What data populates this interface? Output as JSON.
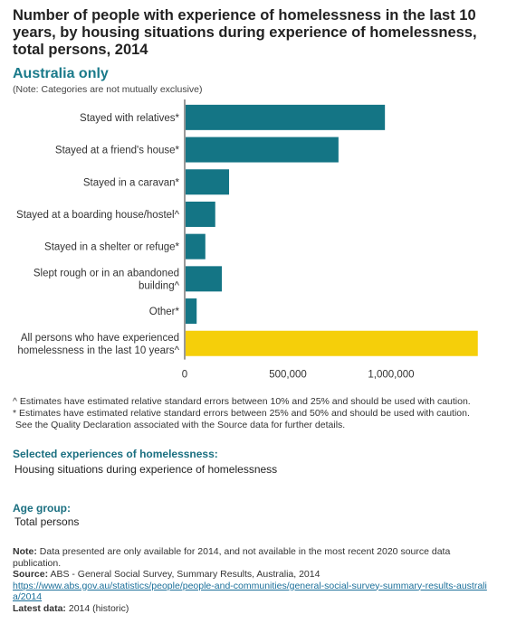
{
  "title": "Number of people with experience of homelessness in the last 10 years, by housing situations during experience of homelessness, total persons, 2014",
  "subtitle": "Australia only",
  "top_note": "(Note: Categories are not mutually exclusive)",
  "chart_data": {
    "type": "bar",
    "orientation": "horizontal",
    "categories": [
      "Stayed with relatives*",
      "Stayed at a friend's house*",
      "Stayed in a caravan*",
      "Stayed at a boarding house/hostel^",
      "Stayed in a shelter or refuge*",
      "Slept rough or in an abandoned building^",
      "Other*",
      "All persons who have experienced homelessness in the last 10 years^"
    ],
    "category_lines": [
      [
        "Stayed with relatives*"
      ],
      [
        "Stayed at a friend's house*"
      ],
      [
        "Stayed in a caravan*"
      ],
      [
        "Stayed at a boarding house/hostel^"
      ],
      [
        "Stayed in a shelter or refuge*"
      ],
      [
        "Slept rough or in an abandoned",
        "building^"
      ],
      [
        "Other*"
      ],
      [
        "All persons who have experienced",
        "homelessness in the last 10 years^"
      ]
    ],
    "values": [
      970000,
      745000,
      215000,
      148000,
      100000,
      180000,
      58000,
      1420000
    ],
    "bar_colors": [
      "#147585",
      "#147585",
      "#147585",
      "#147585",
      "#147585",
      "#147585",
      "#147585",
      "#f5cf0a"
    ],
    "xlim": [
      0,
      1500000
    ],
    "xticks": [
      0,
      500000,
      1000000
    ],
    "xtick_labels": [
      "0",
      "500,000",
      "1,000,000"
    ],
    "grid": false
  },
  "footnotes": [
    "^ Estimates have estimated relative standard errors between 10% and 25% and should be used with caution.",
    "* Estimates have estimated relative standard errors between 25% and 50% and should be used with caution.",
    "  See the Quality Declaration associated with the Source data for further details."
  ],
  "sections": {
    "experiences_label": "Selected experiences of homelessness:",
    "experiences_value": "Housing situations during experience of homelessness",
    "age_label": "Age group:",
    "age_value": "Total persons"
  },
  "bottom": {
    "note_label": "Note:",
    "note_text": "Data presented are only available for 2014, and not available in the most recent 2020 source data publication.",
    "source_label": "Source:",
    "source_text": "ABS - General Social Survey, Summary Results, Australia, 2014",
    "link": "https://www.abs.gov.au/statistics/people/people-and-communities/general-social-survey-summary-results-australia/2014",
    "latest_label": "Latest data:",
    "latest_text": "2014 (historic)"
  }
}
